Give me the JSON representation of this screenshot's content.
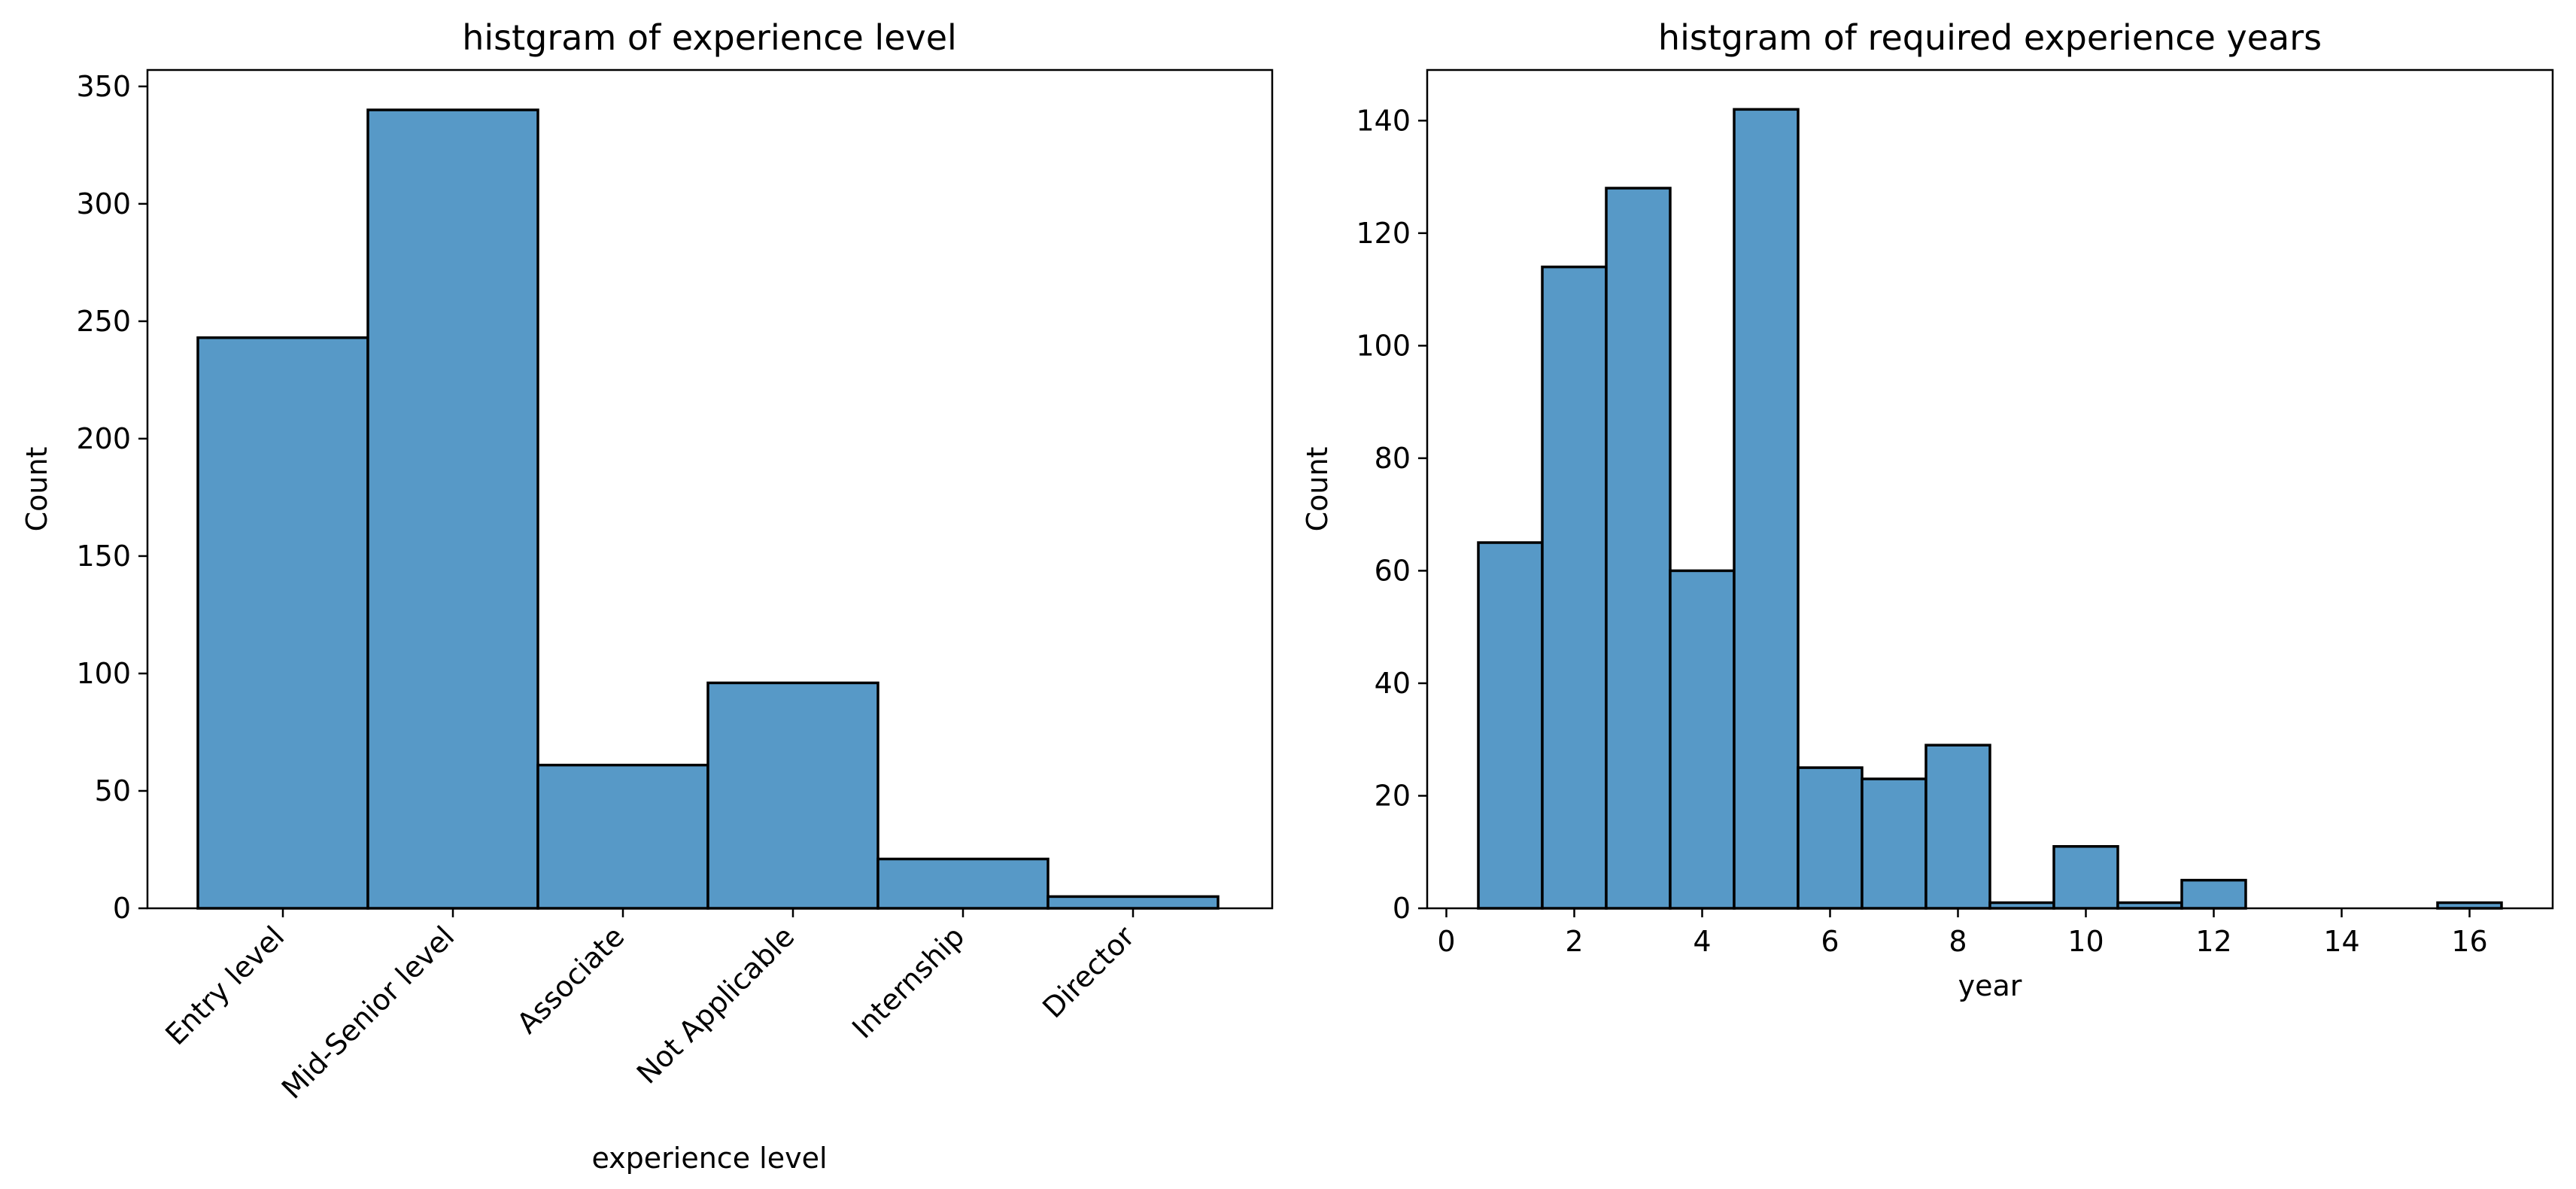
{
  "chart_data": [
    {
      "type": "bar",
      "title": "histgram of experience level",
      "xlabel": "experience level",
      "ylabel": "Count",
      "categories": [
        "Entry level",
        "Mid-Senior level",
        "Associate",
        "Not Applicable",
        "Internship",
        "Director"
      ],
      "values": [
        243,
        340,
        61,
        96,
        21,
        5
      ],
      "ylim": [
        0,
        357
      ],
      "yticks": [
        0,
        50,
        100,
        150,
        200,
        250,
        300,
        350
      ],
      "grid": false,
      "bar_color": "#5799c7"
    },
    {
      "type": "bar",
      "title": "histgram of required experience years",
      "xlabel": "year",
      "ylabel": "Count",
      "bins": [
        {
          "from": 0.5,
          "to": 1.5,
          "count": 65
        },
        {
          "from": 1.5,
          "to": 2.5,
          "count": 114
        },
        {
          "from": 2.5,
          "to": 3.5,
          "count": 128
        },
        {
          "from": 3.5,
          "to": 4.5,
          "count": 60
        },
        {
          "from": 4.5,
          "to": 5.5,
          "count": 142
        },
        {
          "from": 5.5,
          "to": 6.5,
          "count": 25
        },
        {
          "from": 6.5,
          "to": 7.5,
          "count": 23
        },
        {
          "from": 7.5,
          "to": 8.5,
          "count": 29
        },
        {
          "from": 8.5,
          "to": 9.5,
          "count": 1
        },
        {
          "from": 9.5,
          "to": 10.5,
          "count": 11
        },
        {
          "from": 10.5,
          "to": 11.5,
          "count": 1
        },
        {
          "from": 11.5,
          "to": 12.5,
          "count": 5
        },
        {
          "from": 12.5,
          "to": 13.5,
          "count": 0
        },
        {
          "from": 13.5,
          "to": 14.5,
          "count": 0
        },
        {
          "from": 14.5,
          "to": 15.5,
          "count": 0
        },
        {
          "from": 15.5,
          "to": 16.5,
          "count": 1
        }
      ],
      "xlim": [
        -0.3,
        17.3
      ],
      "ylim": [
        0,
        149
      ],
      "xticks": [
        0,
        2,
        4,
        6,
        8,
        10,
        12,
        14,
        16
      ],
      "yticks": [
        0,
        20,
        40,
        60,
        80,
        100,
        120,
        140
      ],
      "grid": false,
      "bar_color": "#5799c7"
    }
  ]
}
